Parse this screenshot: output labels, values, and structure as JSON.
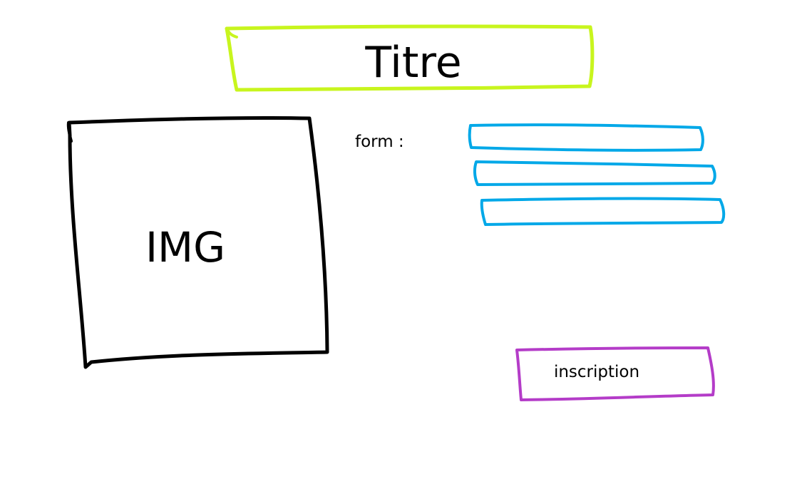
{
  "header": {
    "title": "Titre",
    "border_color": "#C8F51E"
  },
  "image_placeholder": {
    "label": "IMG",
    "border_color": "#000000"
  },
  "form": {
    "label": "form :",
    "field_border_color": "#00A8E8",
    "fields": [
      {
        "value": "",
        "placeholder": ""
      },
      {
        "value": "",
        "placeholder": ""
      },
      {
        "value": "",
        "placeholder": ""
      }
    ]
  },
  "submit_button": {
    "label": "inscription",
    "border_color": "#B43CC8"
  }
}
